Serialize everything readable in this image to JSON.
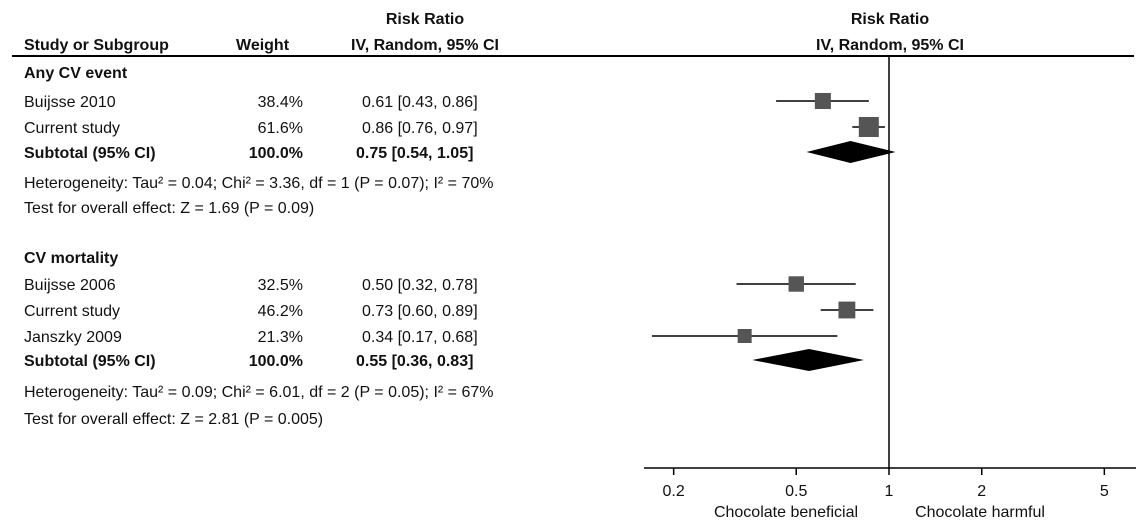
{
  "header": {
    "col_study": "Study or Subgroup",
    "col_weight": "Weight",
    "col_rr_line1": "Risk Ratio",
    "col_rr_line2": "IV, Random, 95% CI",
    "plot_rr_line1": "Risk Ratio",
    "plot_rr_line2": "IV, Random, 95% CI"
  },
  "groups": [
    {
      "name": "Any CV event",
      "studies": [
        {
          "study": "Buijsse 2010",
          "weight": "38.4%",
          "ci_text": "0.61 [0.43, 0.86]"
        },
        {
          "study": "Current study",
          "weight": "61.6%",
          "ci_text": "0.86 [0.76, 0.97]"
        }
      ],
      "subtotal": {
        "label": "Subtotal (95% CI)",
        "weight": "100.0%",
        "ci_text": "0.75 [0.54, 1.05]"
      },
      "heterogeneity": "Heterogeneity: Tau² = 0.04; Chi² = 3.36, df = 1 (P = 0.07); I² = 70%",
      "overall_effect": "Test for overall effect: Z = 1.69 (P = 0.09)"
    },
    {
      "name": "CV mortality",
      "studies": [
        {
          "study": "Buijsse 2006",
          "weight": "32.5%",
          "ci_text": "0.50 [0.32, 0.78]"
        },
        {
          "study": "Current study",
          "weight": "46.2%",
          "ci_text": "0.73 [0.60, 0.89]"
        },
        {
          "study": "Janszky 2009",
          "weight": "21.3%",
          "ci_text": "0.34 [0.17, 0.68]"
        }
      ],
      "subtotal": {
        "label": "Subtotal (95% CI)",
        "weight": "100.0%",
        "ci_text": "0.55 [0.36, 0.83]"
      },
      "heterogeneity": "Heterogeneity: Tau² = 0.09; Chi² = 6.01, df = 2 (P = 0.05); I² = 67%",
      "overall_effect": "Test for overall effect: Z = 2.81 (P = 0.005)"
    }
  ],
  "axis": {
    "left_label": "Chocolate beneficial",
    "right_label": "Chocolate harmful"
  },
  "chart_data": {
    "type": "forest",
    "x_scale": "log",
    "xlim": [
      0.15,
      6
    ],
    "reference_line": 1,
    "xticks": [
      0.2,
      0.5,
      1,
      2,
      5
    ],
    "xtick_labels": [
      "0.2",
      "0.5",
      "1",
      "2",
      "5"
    ],
    "studies": [
      {
        "group": "Any CV event",
        "name": "Buijsse 2010",
        "weight": 38.4,
        "rr": 0.61,
        "lo": 0.43,
        "hi": 0.86
      },
      {
        "group": "Any CV event",
        "name": "Current study",
        "weight": 61.6,
        "rr": 0.86,
        "lo": 0.76,
        "hi": 0.97
      },
      {
        "group": "CV mortality",
        "name": "Buijsse 2006",
        "weight": 32.5,
        "rr": 0.5,
        "lo": 0.32,
        "hi": 0.78
      },
      {
        "group": "CV mortality",
        "name": "Current study",
        "weight": 46.2,
        "rr": 0.73,
        "lo": 0.6,
        "hi": 0.89
      },
      {
        "group": "CV mortality",
        "name": "Janszky 2009",
        "weight": 21.3,
        "rr": 0.34,
        "lo": 0.17,
        "hi": 0.68
      }
    ],
    "subtotals": [
      {
        "group": "Any CV event",
        "rr": 0.75,
        "lo": 0.54,
        "hi": 1.05
      },
      {
        "group": "CV mortality",
        "rr": 0.55,
        "lo": 0.36,
        "hi": 0.83
      }
    ],
    "colors": {
      "marker": "#555555",
      "line": "#000000",
      "diamond": "#000000"
    }
  }
}
